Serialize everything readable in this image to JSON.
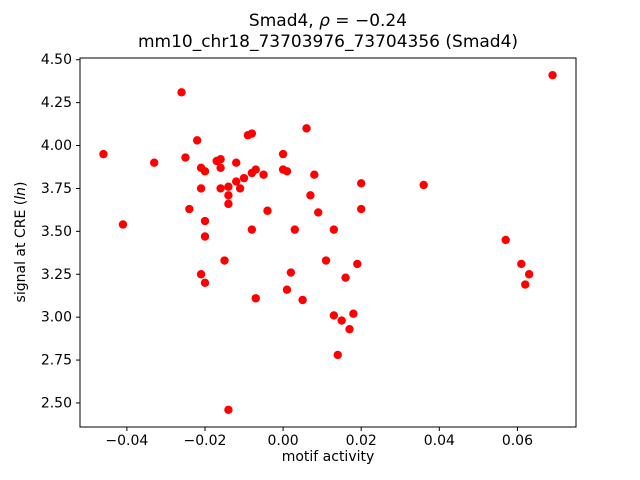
{
  "chart_data": {
    "type": "scatter",
    "title": {
      "prefix": "Smad4, ",
      "rho": "ρ",
      "suffix": " = −0.24"
    },
    "subtitle": "mm10_chr18_73703976_73704356 (Smad4)",
    "xlabel": "motif activity",
    "ylabel_prefix": "signal at CRE (",
    "ylabel_italic": "ln",
    "ylabel_suffix": ")",
    "xlim": [
      -0.052,
      0.075
    ],
    "ylim": [
      2.36,
      4.51
    ],
    "xticks": [
      -0.04,
      -0.02,
      0.0,
      0.02,
      0.04,
      0.06
    ],
    "yticks": [
      2.5,
      2.75,
      3.0,
      3.25,
      3.5,
      3.75,
      4.0,
      4.25,
      4.5
    ],
    "grid": false,
    "legend": "none",
    "marker_color": "#ff0000",
    "points": [
      [
        -0.046,
        3.95
      ],
      [
        -0.041,
        3.54
      ],
      [
        -0.033,
        3.9
      ],
      [
        -0.026,
        4.31
      ],
      [
        -0.025,
        3.93
      ],
      [
        -0.024,
        3.63
      ],
      [
        -0.022,
        4.03
      ],
      [
        -0.021,
        3.87
      ],
      [
        -0.021,
        3.75
      ],
      [
        -0.02,
        3.85
      ],
      [
        -0.02,
        3.56
      ],
      [
        -0.02,
        3.47
      ],
      [
        -0.021,
        3.25
      ],
      [
        -0.02,
        3.2
      ],
      [
        -0.017,
        3.91
      ],
      [
        -0.016,
        3.92
      ],
      [
        -0.016,
        3.87
      ],
      [
        -0.016,
        3.75
      ],
      [
        -0.015,
        3.33
      ],
      [
        -0.014,
        3.76
      ],
      [
        -0.014,
        3.71
      ],
      [
        -0.014,
        3.66
      ],
      [
        -0.014,
        2.46
      ],
      [
        -0.012,
        3.9
      ],
      [
        -0.012,
        3.79
      ],
      [
        -0.011,
        3.75
      ],
      [
        -0.01,
        3.81
      ],
      [
        -0.009,
        4.06
      ],
      [
        -0.008,
        4.07
      ],
      [
        -0.008,
        3.84
      ],
      [
        -0.008,
        3.51
      ],
      [
        -0.007,
        3.86
      ],
      [
        -0.007,
        3.11
      ],
      [
        -0.005,
        3.83
      ],
      [
        -0.004,
        3.62
      ],
      [
        0.0,
        3.95
      ],
      [
        0.0,
        3.86
      ],
      [
        0.001,
        3.85
      ],
      [
        0.001,
        3.16
      ],
      [
        0.002,
        3.26
      ],
      [
        0.003,
        3.51
      ],
      [
        0.005,
        3.1
      ],
      [
        0.006,
        4.1
      ],
      [
        0.007,
        3.71
      ],
      [
        0.008,
        3.83
      ],
      [
        0.009,
        3.61
      ],
      [
        0.011,
        3.33
      ],
      [
        0.013,
        3.51
      ],
      [
        0.013,
        3.01
      ],
      [
        0.014,
        2.78
      ],
      [
        0.015,
        2.98
      ],
      [
        0.016,
        3.23
      ],
      [
        0.017,
        2.93
      ],
      [
        0.018,
        3.02
      ],
      [
        0.019,
        3.31
      ],
      [
        0.02,
        3.78
      ],
      [
        0.02,
        3.63
      ],
      [
        0.036,
        3.77
      ],
      [
        0.057,
        3.45
      ],
      [
        0.061,
        3.31
      ],
      [
        0.062,
        3.19
      ],
      [
        0.063,
        3.25
      ],
      [
        0.069,
        4.41
      ]
    ]
  }
}
